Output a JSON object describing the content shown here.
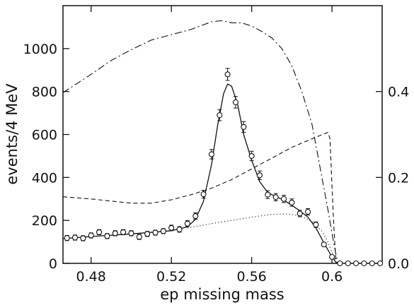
{
  "chart_data": {
    "type": "scatter",
    "xlabel": "ep missing mass",
    "ylabel": "events/4 MeV",
    "xlim": [
      0.466,
      0.625
    ],
    "ylim": [
      0,
      1200
    ],
    "y2lim": [
      0,
      0.6
    ],
    "x_ticks": [
      {
        "value": 0.48,
        "label": "0.48"
      },
      {
        "value": 0.52,
        "label": "0.52"
      },
      {
        "value": 0.56,
        "label": "0.56"
      },
      {
        "value": 0.6,
        "label": "0.6"
      }
    ],
    "y_ticks": [
      {
        "value": 0,
        "label": "0"
      },
      {
        "value": 200,
        "label": "200"
      },
      {
        "value": 400,
        "label": "400"
      },
      {
        "value": 600,
        "label": "600"
      },
      {
        "value": 800,
        "label": "800"
      },
      {
        "value": 1000,
        "label": "1000"
      }
    ],
    "y2_ticks": [
      {
        "value": 0.0,
        "label": "0.0"
      },
      {
        "value": 0.2,
        "label": "0.2"
      },
      {
        "value": 0.4,
        "label": "0.4"
      }
    ],
    "points": [
      {
        "x": 0.468,
        "y": 118,
        "err": 12
      },
      {
        "x": 0.472,
        "y": 120,
        "err": 12
      },
      {
        "x": 0.476,
        "y": 117,
        "err": 12
      },
      {
        "x": 0.48,
        "y": 130,
        "err": 12
      },
      {
        "x": 0.484,
        "y": 145,
        "err": 12
      },
      {
        "x": 0.488,
        "y": 127,
        "err": 12
      },
      {
        "x": 0.492,
        "y": 140,
        "err": 12
      },
      {
        "x": 0.496,
        "y": 145,
        "err": 12
      },
      {
        "x": 0.5,
        "y": 140,
        "err": 12
      },
      {
        "x": 0.504,
        "y": 123,
        "err": 12
      },
      {
        "x": 0.508,
        "y": 137,
        "err": 12
      },
      {
        "x": 0.512,
        "y": 143,
        "err": 12
      },
      {
        "x": 0.516,
        "y": 150,
        "err": 12
      },
      {
        "x": 0.52,
        "y": 165,
        "err": 13
      },
      {
        "x": 0.524,
        "y": 158,
        "err": 13
      },
      {
        "x": 0.528,
        "y": 185,
        "err": 14
      },
      {
        "x": 0.532,
        "y": 220,
        "err": 15
      },
      {
        "x": 0.536,
        "y": 322,
        "err": 18
      },
      {
        "x": 0.54,
        "y": 508,
        "err": 22
      },
      {
        "x": 0.544,
        "y": 690,
        "err": 26
      },
      {
        "x": 0.548,
        "y": 880,
        "err": 28
      },
      {
        "x": 0.552,
        "y": 750,
        "err": 27
      },
      {
        "x": 0.556,
        "y": 635,
        "err": 25
      },
      {
        "x": 0.56,
        "y": 500,
        "err": 22
      },
      {
        "x": 0.564,
        "y": 410,
        "err": 20
      },
      {
        "x": 0.568,
        "y": 320,
        "err": 18
      },
      {
        "x": 0.572,
        "y": 308,
        "err": 17
      },
      {
        "x": 0.576,
        "y": 300,
        "err": 17
      },
      {
        "x": 0.58,
        "y": 283,
        "err": 17
      },
      {
        "x": 0.584,
        "y": 232,
        "err": 15
      },
      {
        "x": 0.588,
        "y": 240,
        "err": 15
      },
      {
        "x": 0.592,
        "y": 180,
        "err": 13
      },
      {
        "x": 0.596,
        "y": 88,
        "err": 9
      },
      {
        "x": 0.6,
        "y": 30,
        "err": 6
      },
      {
        "x": 0.604,
        "y": 0,
        "err": 0
      },
      {
        "x": 0.608,
        "y": 0,
        "err": 0
      },
      {
        "x": 0.612,
        "y": 0,
        "err": 0
      },
      {
        "x": 0.616,
        "y": 0,
        "err": 0
      },
      {
        "x": 0.62,
        "y": 0,
        "err": 0
      },
      {
        "x": 0.624,
        "y": 0,
        "err": 0
      }
    ],
    "series": [
      {
        "style": "solid",
        "axis": "left",
        "points": [
          [
            0.466,
            115
          ],
          [
            0.48,
            125
          ],
          [
            0.5,
            137
          ],
          [
            0.52,
            152
          ],
          [
            0.528,
            170
          ],
          [
            0.532,
            205
          ],
          [
            0.536,
            290
          ],
          [
            0.54,
            460
          ],
          [
            0.543,
            640
          ],
          [
            0.546,
            790
          ],
          [
            0.548,
            835
          ],
          [
            0.55,
            825
          ],
          [
            0.553,
            740
          ],
          [
            0.556,
            600
          ],
          [
            0.56,
            480
          ],
          [
            0.564,
            380
          ],
          [
            0.568,
            330
          ],
          [
            0.572,
            310
          ],
          [
            0.576,
            295
          ],
          [
            0.58,
            270
          ],
          [
            0.584,
            245
          ],
          [
            0.588,
            215
          ],
          [
            0.592,
            165
          ],
          [
            0.596,
            95
          ],
          [
            0.6,
            30
          ],
          [
            0.602,
            5
          ],
          [
            0.604,
            0
          ]
        ]
      },
      {
        "style": "dotted",
        "axis": "left",
        "points": [
          [
            0.528,
            165
          ],
          [
            0.54,
            185
          ],
          [
            0.55,
            200
          ],
          [
            0.56,
            215
          ],
          [
            0.57,
            228
          ],
          [
            0.578,
            230
          ],
          [
            0.584,
            222
          ],
          [
            0.59,
            195
          ],
          [
            0.595,
            150
          ],
          [
            0.598,
            100
          ],
          [
            0.6,
            50
          ],
          [
            0.602,
            10
          ]
        ]
      },
      {
        "style": "dashed",
        "axis": "right",
        "points": [
          [
            0.466,
            0.155
          ],
          [
            0.48,
            0.15
          ],
          [
            0.49,
            0.145
          ],
          [
            0.5,
            0.14
          ],
          [
            0.51,
            0.14
          ],
          [
            0.52,
            0.148
          ],
          [
            0.53,
            0.16
          ],
          [
            0.54,
            0.175
          ],
          [
            0.55,
            0.195
          ],
          [
            0.56,
            0.22
          ],
          [
            0.57,
            0.245
          ],
          [
            0.58,
            0.27
          ],
          [
            0.59,
            0.29
          ],
          [
            0.598,
            0.305
          ],
          [
            0.599,
            0.29
          ],
          [
            0.6,
            0.18
          ],
          [
            0.601,
            0.08
          ],
          [
            0.602,
            0.0
          ]
        ]
      },
      {
        "style": "dashdot",
        "axis": "left",
        "points": [
          [
            0.466,
            795
          ],
          [
            0.48,
            880
          ],
          [
            0.49,
            945
          ],
          [
            0.5,
            995
          ],
          [
            0.51,
            1040
          ],
          [
            0.52,
            1065
          ],
          [
            0.53,
            1090
          ],
          [
            0.54,
            1125
          ],
          [
            0.545,
            1130
          ],
          [
            0.55,
            1120
          ],
          [
            0.555,
            1120
          ],
          [
            0.56,
            1105
          ],
          [
            0.565,
            1080
          ],
          [
            0.57,
            1050
          ],
          [
            0.575,
            1000
          ],
          [
            0.58,
            920
          ],
          [
            0.585,
            800
          ],
          [
            0.59,
            650
          ],
          [
            0.595,
            400
          ],
          [
            0.598,
            250
          ],
          [
            0.6,
            140
          ],
          [
            0.602,
            40
          ],
          [
            0.603,
            0
          ]
        ]
      }
    ],
    "grid": false,
    "legend": "none"
  }
}
